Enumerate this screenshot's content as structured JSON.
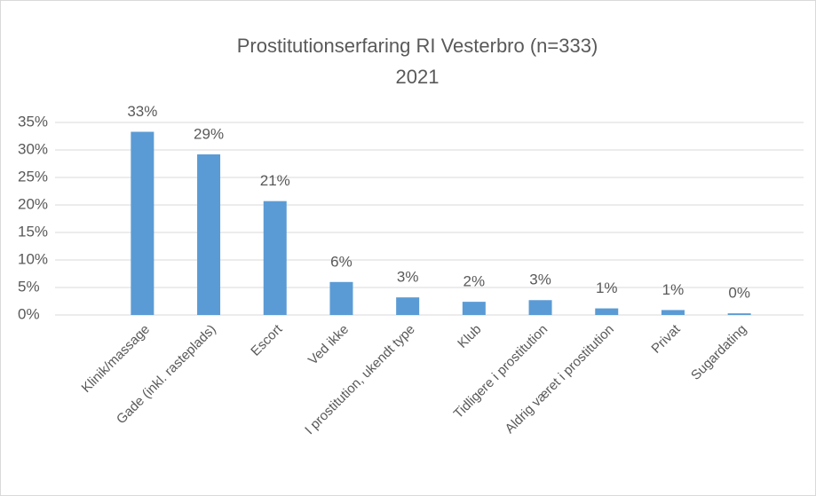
{
  "chart_data": {
    "type": "bar",
    "title": "Prostitutionserfaring RI Vesterbro (n=333)",
    "subtitle": "2021",
    "categories": [
      "Klinik/massage",
      "Gade (inkl. rasteplads)",
      "Escort",
      "Ved ikke",
      "I prostitution, ukendt type",
      "Klub",
      "Tidligere i prostitution",
      "Aldrig været i prostitution",
      "Privat",
      "Sugardating"
    ],
    "values": [
      33.3,
      29.2,
      20.7,
      6.0,
      3.2,
      2.4,
      2.7,
      1.2,
      0.9,
      0.3
    ],
    "value_labels": [
      "33%",
      "29%",
      "21%",
      "6%",
      "3%",
      "2%",
      "3%",
      "1%",
      "1%",
      "0%"
    ],
    "color": "#5b9bd5",
    "ylim": [
      0,
      35
    ],
    "yticks": [
      {
        "value": 0,
        "label": "0%"
      },
      {
        "value": 5,
        "label": "5%"
      },
      {
        "value": 10,
        "label": "10%"
      },
      {
        "value": 15,
        "label": "15%"
      },
      {
        "value": 20,
        "label": "20%"
      },
      {
        "value": 25,
        "label": "25%"
      },
      {
        "value": 30,
        "label": "30%"
      },
      {
        "value": 35,
        "label": "35%"
      }
    ],
    "grid": true
  }
}
